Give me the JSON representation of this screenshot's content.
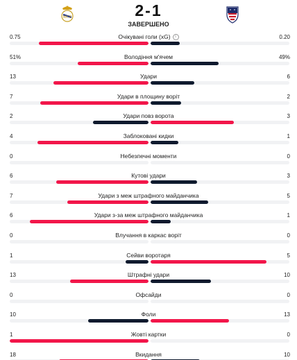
{
  "match": {
    "score": "2-1",
    "status": "ЗАВЕРШЕНО",
    "home_logo_icon": "real-madrid-crest-icon",
    "away_logo_icon": "atletico-madrid-crest-icon"
  },
  "colors": {
    "red": "#f2164a",
    "navy": "#0f1a2e",
    "track": "#f1f2f4"
  },
  "stats": [
    {
      "label": "Очікувані голи (xG)",
      "home": "0.75",
      "away": "0.20",
      "home_num": 0.75,
      "away_num": 0.2,
      "info": true,
      "home_leads": true
    },
    {
      "label": "Володіння м'ячем",
      "home": "51%",
      "away": "49%",
      "home_num": 51,
      "away_num": 49,
      "home_leads": true
    },
    {
      "label": "Удари",
      "home": "13",
      "away": "6",
      "home_num": 13,
      "away_num": 6,
      "home_leads": true
    },
    {
      "label": "Удари в площину воріт",
      "home": "7",
      "away": "2",
      "home_num": 7,
      "away_num": 2,
      "home_leads": true
    },
    {
      "label": "Удари повз ворота",
      "home": "2",
      "away": "3",
      "home_num": 2,
      "away_num": 3,
      "home_leads": false
    },
    {
      "label": "Заблоковані кидки",
      "home": "4",
      "away": "1",
      "home_num": 4,
      "away_num": 1,
      "home_leads": true
    },
    {
      "label": "Небезпечні моменти",
      "home": "0",
      "away": "0",
      "home_num": 0,
      "away_num": 0,
      "home_leads": true
    },
    {
      "label": "Кутові удари",
      "home": "6",
      "away": "3",
      "home_num": 6,
      "away_num": 3,
      "home_leads": true
    },
    {
      "label": "Удари з меж штрафного майданчика",
      "home": "7",
      "away": "5",
      "home_num": 7,
      "away_num": 5,
      "home_leads": true
    },
    {
      "label": "Удари з-за меж штрафного майданчика",
      "home": "6",
      "away": "1",
      "home_num": 6,
      "away_num": 1,
      "home_leads": true
    },
    {
      "label": "Влучання в каркас воріт",
      "home": "0",
      "away": "0",
      "home_num": 0,
      "away_num": 0,
      "home_leads": true
    },
    {
      "label": "Сейви воротаря",
      "home": "1",
      "away": "5",
      "home_num": 1,
      "away_num": 5,
      "home_leads": false
    },
    {
      "label": "Штрафні удари",
      "home": "13",
      "away": "10",
      "home_num": 13,
      "away_num": 10,
      "home_leads": true
    },
    {
      "label": "Офсайди",
      "home": "0",
      "away": "0",
      "home_num": 0,
      "away_num": 0,
      "home_leads": true
    },
    {
      "label": "Фоли",
      "home": "10",
      "away": "13",
      "home_num": 10,
      "away_num": 13,
      "home_leads": false
    },
    {
      "label": "Жовті картки",
      "home": "1",
      "away": "0",
      "home_num": 1,
      "away_num": 0,
      "home_leads": true
    },
    {
      "label": "Вкидання",
      "home": "18",
      "away": "10",
      "home_num": 18,
      "away_num": 10,
      "home_leads": true
    }
  ]
}
